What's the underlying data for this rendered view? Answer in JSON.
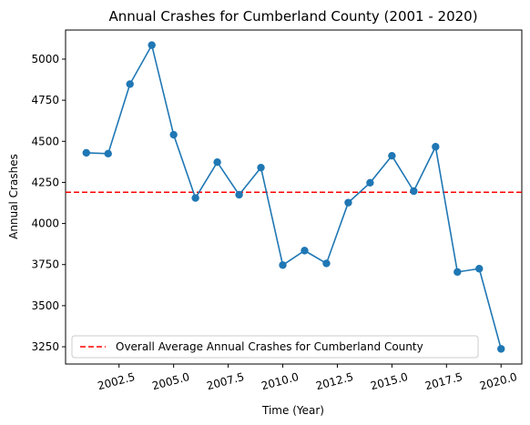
{
  "chart_data": {
    "type": "line",
    "title": "Annual Crashes for Cumberland County (2001 - 2020)",
    "xlabel": "Time (Year)",
    "ylabel": "Annual Crashes",
    "x": [
      2001,
      2002,
      2003,
      2004,
      2005,
      2006,
      2007,
      2008,
      2009,
      2010,
      2011,
      2012,
      2013,
      2014,
      2015,
      2016,
      2017,
      2018,
      2019,
      2020
    ],
    "series": [
      {
        "values": [
          4430,
          4425,
          4848,
          5085,
          4540,
          4155,
          4373,
          4175,
          4340,
          3747,
          3835,
          3757,
          4127,
          4248,
          4412,
          4197,
          4467,
          3705,
          3725,
          3237
        ],
        "color": "#1f77b4",
        "marker": "circle"
      }
    ],
    "reference_line": {
      "label": "Overall Average Annual Crashes for Cumberland County",
      "value": 4190,
      "color": "#ff0000",
      "style": "dashed"
    },
    "x_ticks": [
      2002.5,
      2005.0,
      2007.5,
      2010.0,
      2012.5,
      2015.0,
      2017.5,
      2020.0
    ],
    "x_tick_labels": [
      "2002.5",
      "2005.0",
      "2007.5",
      "2010.0",
      "2012.5",
      "2015.0",
      "2017.5",
      "2020.0"
    ],
    "y_ticks": [
      3250,
      3500,
      3750,
      4000,
      4250,
      4500,
      4750,
      5000
    ],
    "y_tick_labels": [
      "3250",
      "3500",
      "3750",
      "4000",
      "4250",
      "4500",
      "4750",
      "5000"
    ],
    "xlim": [
      2000.05,
      2020.95
    ],
    "ylim": [
      3145,
      5177
    ],
    "grid": false,
    "legend_position": "lower-left",
    "x_tick_rotation": "rotated"
  }
}
